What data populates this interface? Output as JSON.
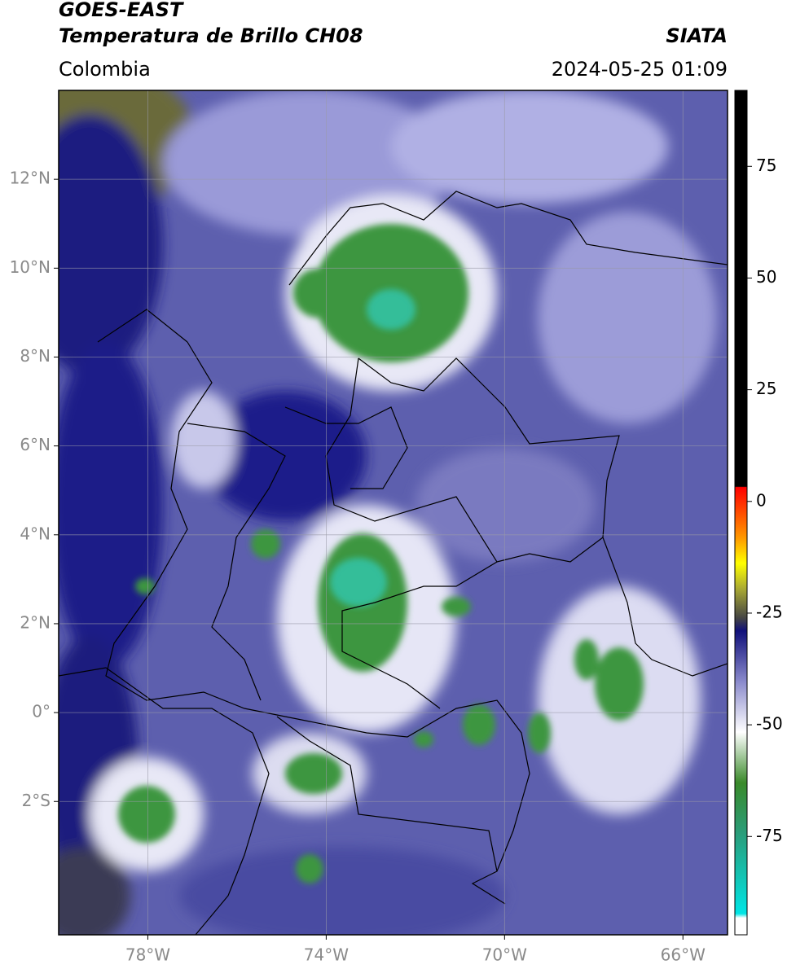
{
  "header": {
    "title_line1": "GOES-EAST",
    "title_line2": "Temperatura de Brillo CH08",
    "region": "Colombia",
    "source": "SIATA",
    "timestamp": "2024-05-25 01:09"
  },
  "map": {
    "xlim": [
      -80,
      -65
    ],
    "ylim": [
      -5,
      14
    ],
    "xticks": [
      {
        "value": -78,
        "label": "78°W"
      },
      {
        "value": -74,
        "label": "74°W"
      },
      {
        "value": -70,
        "label": "70°W"
      },
      {
        "value": -66,
        "label": "66°W"
      }
    ],
    "yticks": [
      {
        "value": 12,
        "label": "12°N"
      },
      {
        "value": 10,
        "label": "10°N"
      },
      {
        "value": 8,
        "label": "8°N"
      },
      {
        "value": 6,
        "label": "6°N"
      },
      {
        "value": 4,
        "label": "4°N"
      },
      {
        "value": 2,
        "label": "2°N"
      },
      {
        "value": 0,
        "label": "0°"
      },
      {
        "value": -2,
        "label": "2°S"
      }
    ],
    "grid": true
  },
  "colorbar": {
    "lim": [
      -97,
      92
    ],
    "ticks": [
      75,
      50,
      25,
      0,
      -25,
      -50,
      -75
    ]
  }
}
